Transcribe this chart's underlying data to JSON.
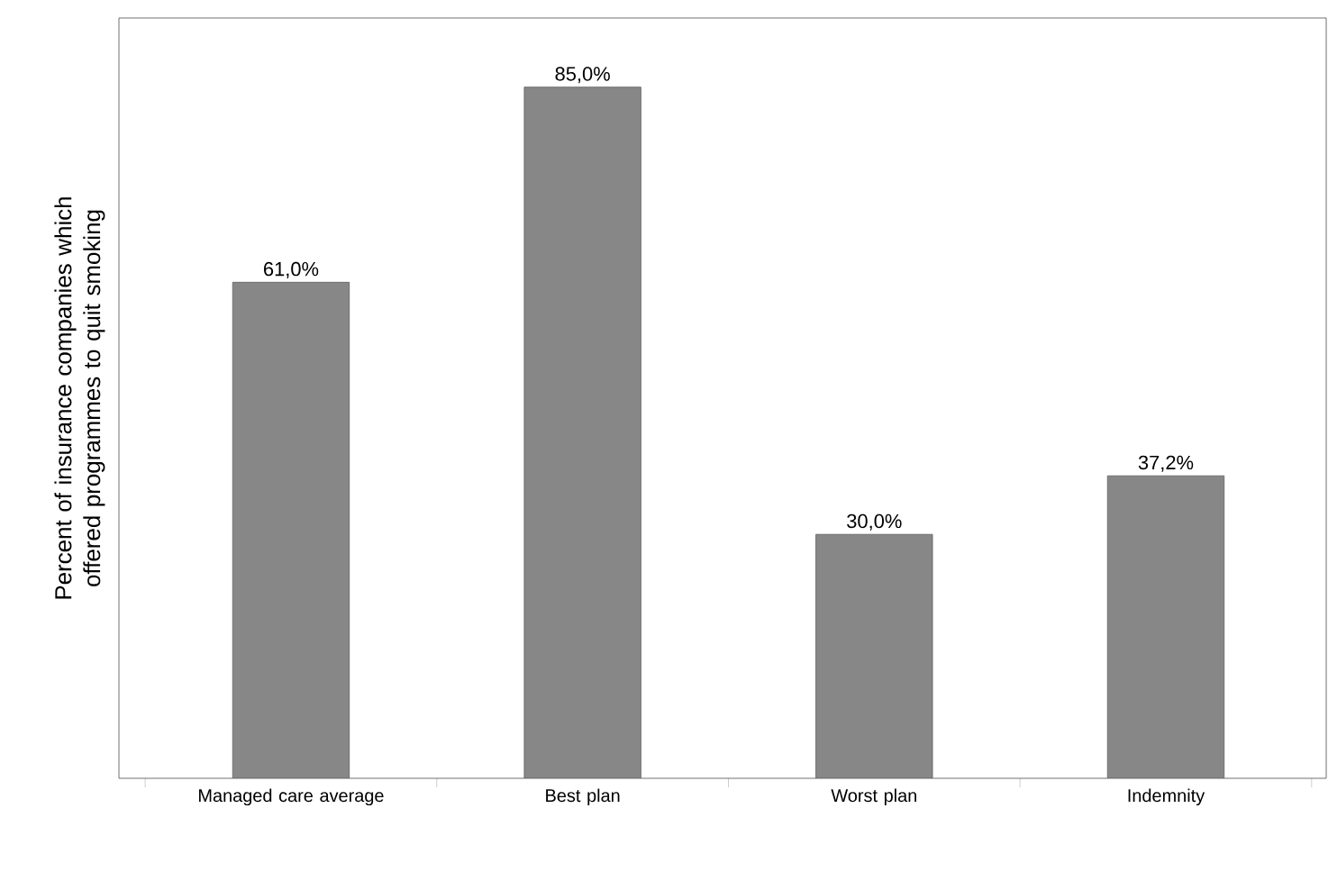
{
  "chart_data": {
    "type": "bar",
    "ylabel": "Percent of insurance companies which offered programmes to quit smoking",
    "categories": [
      "Managed care average",
      "Best plan",
      "Worst plan",
      "Indemnity"
    ],
    "values": [
      61.0,
      85.0,
      30.0,
      37.2
    ],
    "value_labels": [
      "61,0%",
      "85,0%",
      "30,0%",
      "37,2%"
    ],
    "color": "#878787"
  }
}
